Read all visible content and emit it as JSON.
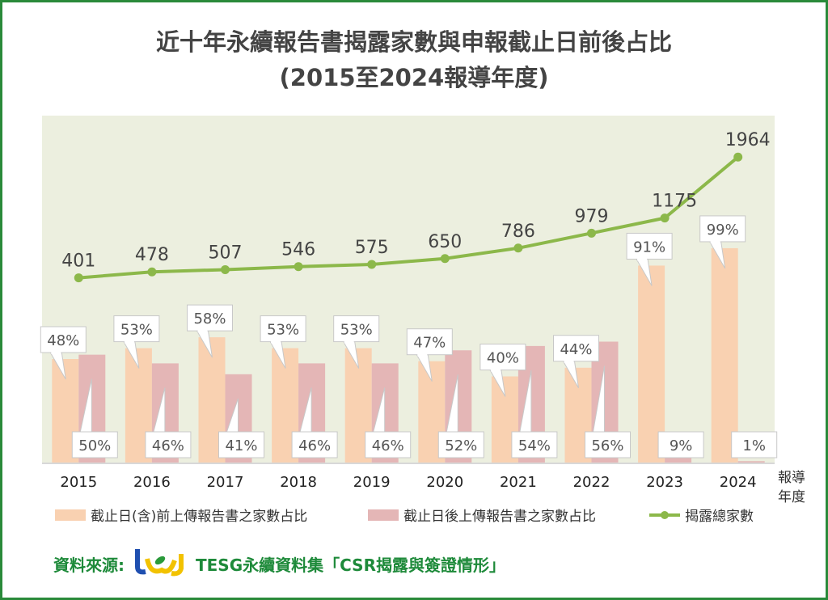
{
  "title": {
    "line1": "近十年永續報告書揭露家數與申報截止日前後占比",
    "line2": "(2015至2024報導年度)"
  },
  "chart_data": {
    "type": "bar+line",
    "categories": [
      "2015",
      "2016",
      "2017",
      "2018",
      "2019",
      "2020",
      "2021",
      "2022",
      "2023",
      "2024"
    ],
    "xlabel": "報導年度",
    "xlabel_lines": [
      "報導",
      "年度"
    ],
    "series": [
      {
        "name": "截止日(含)前上傳報告書之家數占比",
        "type": "bar",
        "unit": "%",
        "color": "#f9d1b1",
        "values": [
          48,
          53,
          58,
          53,
          53,
          47,
          40,
          44,
          91,
          99
        ],
        "labels": [
          "48%",
          "53%",
          "58%",
          "53%",
          "53%",
          "47%",
          "40%",
          "44%",
          "91%",
          "99%"
        ]
      },
      {
        "name": "截止日後上傳報告書之家數占比",
        "type": "bar",
        "unit": "%",
        "color": "#e4b6b6",
        "values": [
          50,
          46,
          41,
          46,
          46,
          52,
          54,
          56,
          9,
          1
        ],
        "labels": [
          "50%",
          "46%",
          "41%",
          "46%",
          "46%",
          "52%",
          "54%",
          "56%",
          "9%",
          "1%"
        ]
      },
      {
        "name": "揭露總家數",
        "type": "line",
        "color": "#8cb84a",
        "values": [
          401,
          478,
          507,
          546,
          575,
          650,
          786,
          979,
          1175,
          1964
        ],
        "labels": [
          "401",
          "478",
          "507",
          "546",
          "575",
          "650",
          "786",
          "979",
          "1175",
          "1964"
        ]
      }
    ],
    "ylim_bars": [
      0,
      160
    ],
    "ylim_line": [
      -2000,
      2500
    ],
    "grid": false,
    "legend_position": "bottom",
    "plot_background": "#ecefdf"
  },
  "source": {
    "label": "資料來源:",
    "logo": "tej",
    "text": "TESG永續資料集「CSR揭露與簽證情形」"
  },
  "colors": {
    "border": "#2a8a3a",
    "source_text": "#1e8a3a"
  }
}
